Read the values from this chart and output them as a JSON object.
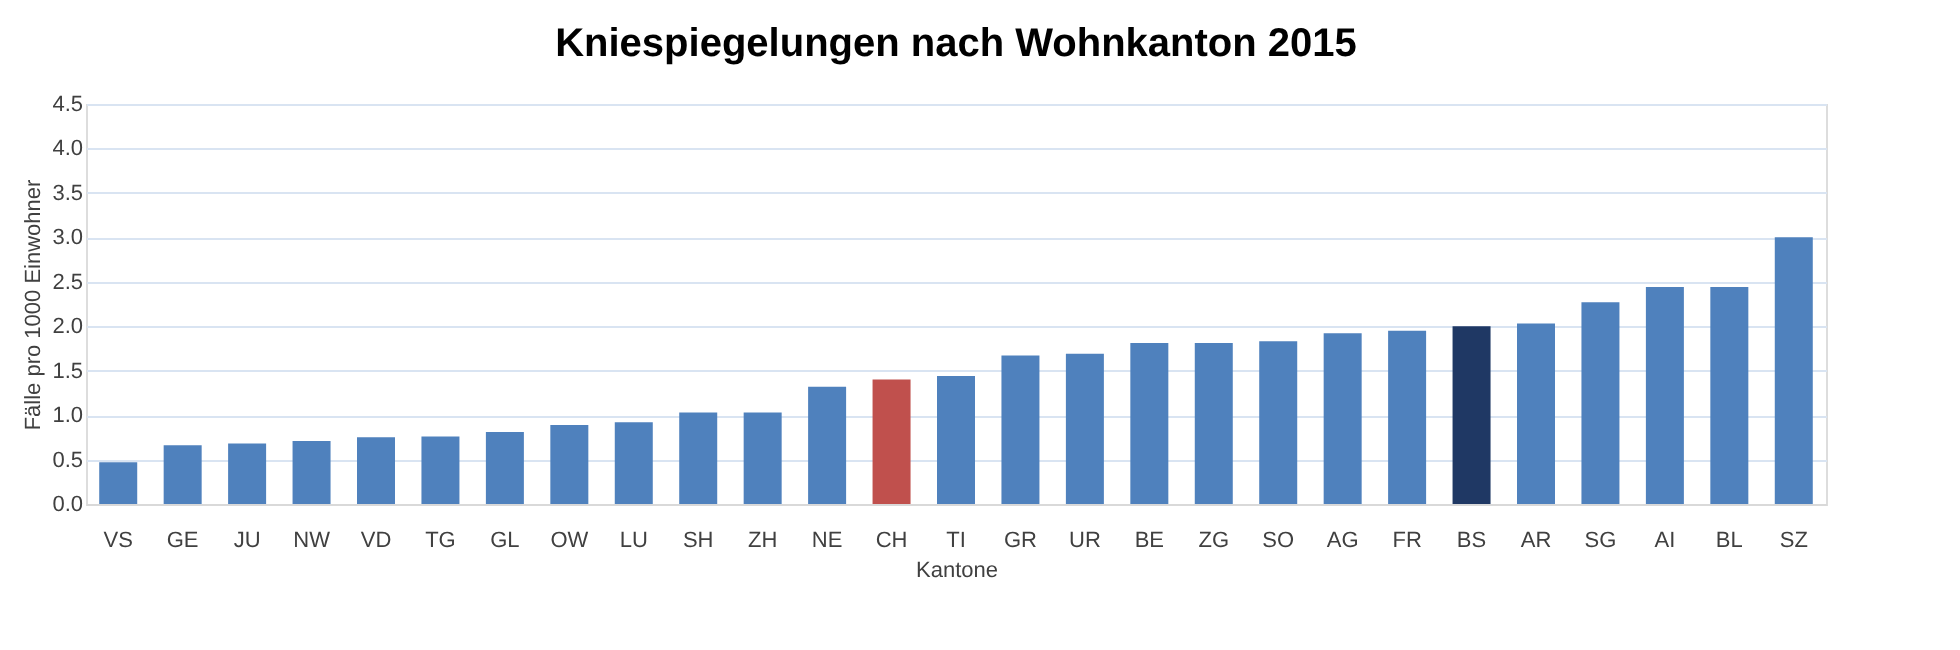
{
  "chart_data": {
    "type": "bar",
    "title": "Kniespiegelungen nach Wohnkanton 2015",
    "xlabel": "Kantone",
    "ylabel": "Fälle pro 1000 Einwohner",
    "categories": [
      "VS",
      "GE",
      "JU",
      "NW",
      "VD",
      "TG",
      "GL",
      "OW",
      "LU",
      "SH",
      "ZH",
      "NE",
      "CH",
      "TI",
      "GR",
      "UR",
      "BE",
      "ZG",
      "SO",
      "AG",
      "FR",
      "BS",
      "AR",
      "SG",
      "AI",
      "BL",
      "SZ"
    ],
    "values": [
      0.47,
      0.66,
      0.68,
      0.71,
      0.75,
      0.76,
      0.81,
      0.89,
      0.92,
      1.03,
      1.03,
      1.32,
      1.4,
      1.44,
      1.67,
      1.69,
      1.81,
      1.81,
      1.83,
      1.92,
      1.95,
      2.0,
      2.03,
      2.27,
      2.44,
      2.44,
      3.0
    ],
    "colors": [
      "#4f81bd",
      "#4f81bd",
      "#4f81bd",
      "#4f81bd",
      "#4f81bd",
      "#4f81bd",
      "#4f81bd",
      "#4f81bd",
      "#4f81bd",
      "#4f81bd",
      "#4f81bd",
      "#4f81bd",
      "#c0504d",
      "#4f81bd",
      "#4f81bd",
      "#4f81bd",
      "#4f81bd",
      "#4f81bd",
      "#4f81bd",
      "#4f81bd",
      "#4f81bd",
      "#1f3864",
      "#4f81bd",
      "#4f81bd",
      "#4f81bd",
      "#4f81bd",
      "#4f81bd"
    ],
    "ylim": [
      0,
      4.5
    ],
    "yticks": [
      {
        "value": 0,
        "label": "0.0"
      },
      {
        "value": 0.5,
        "label": "0.5"
      },
      {
        "value": 1,
        "label": "1.0"
      },
      {
        "value": 1.5,
        "label": "1.5"
      },
      {
        "value": 2,
        "label": "2.0"
      },
      {
        "value": 2.5,
        "label": "2.5"
      },
      {
        "value": 3,
        "label": "3.0"
      },
      {
        "value": 3.5,
        "label": "3.5"
      },
      {
        "value": 4,
        "label": "4.0"
      },
      {
        "value": 4.5,
        "label": "4.5"
      }
    ],
    "grid": "y"
  }
}
